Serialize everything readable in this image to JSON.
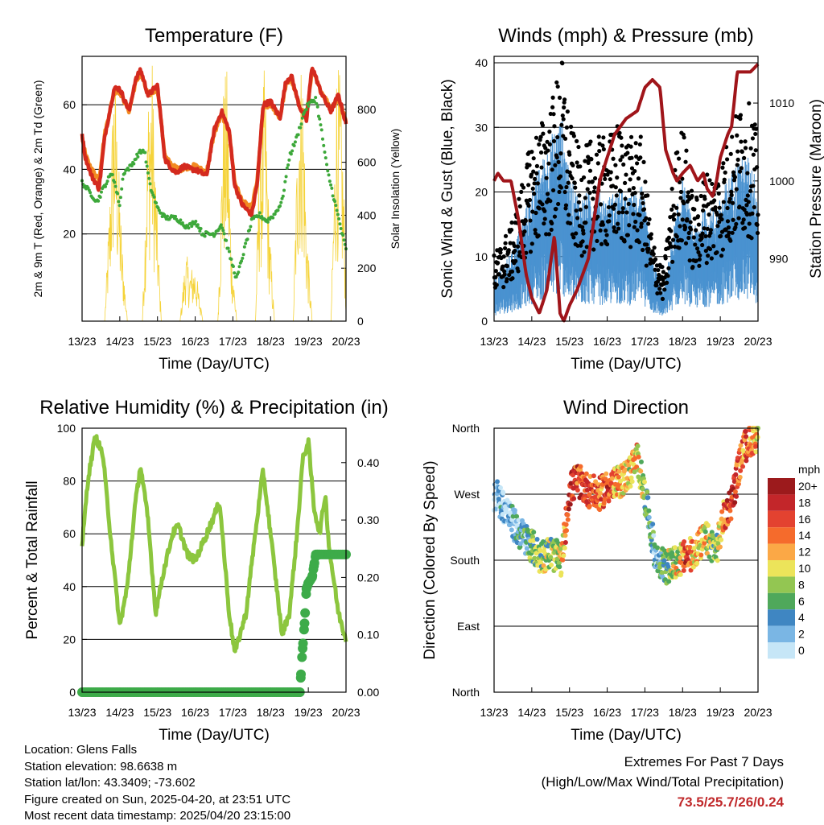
{
  "chart_data": [
    {
      "type": "line",
      "title": "Temperature (F)",
      "xlabel": "Time (Day/UTC)",
      "ylabel": "2m & 9m T (Red, Orange) & 2m Td (Green)",
      "y2label": "Solar Insolation (Yellow)",
      "x_ticks": [
        "13/23",
        "14/23",
        "15/23",
        "16/23",
        "17/23",
        "18/23",
        "19/23",
        "20/23"
      ],
      "x_range": [
        0,
        7
      ],
      "ylim": [
        -7,
        75
      ],
      "y_ticks": [
        20,
        40,
        60
      ],
      "y2lim": [
        0,
        1000
      ],
      "y2_ticks": [
        0,
        200,
        400,
        600,
        800
      ],
      "colors": {
        "t2m": "#d42a1e",
        "t9m": "#f28a22",
        "td2m": "#3da83a",
        "solar": "#f5d33a"
      },
      "series": [
        {
          "name": "2m T",
          "x": [
            0,
            0.08,
            0.25,
            0.45,
            0.6,
            0.85,
            1.0,
            1.25,
            1.4,
            1.55,
            1.75,
            2.0,
            2.2,
            2.4,
            2.5,
            2.7,
            2.9,
            3.0,
            3.3,
            3.5,
            3.7,
            3.9,
            4.05,
            4.25,
            4.5,
            4.65,
            4.8,
            5.0,
            5.25,
            5.4,
            5.55,
            5.75,
            5.95,
            6.1,
            6.3,
            6.5,
            6.6,
            6.8,
            7.0
          ],
          "values": [
            51,
            44,
            38,
            34,
            50,
            65,
            65,
            58,
            67,
            71,
            63,
            66,
            43,
            40,
            39,
            41,
            40,
            40,
            38,
            52,
            58,
            52,
            35,
            29,
            26,
            36,
            60,
            61,
            56,
            67,
            69,
            60,
            55,
            72,
            65,
            60,
            58,
            63,
            54
          ]
        },
        {
          "name": "9m T",
          "x": [
            0,
            0.1,
            0.25,
            0.45,
            0.6,
            0.85,
            1.0,
            1.25,
            1.4,
            1.55,
            1.75,
            2.0,
            2.2,
            2.4,
            2.6,
            2.9,
            3.0,
            3.3,
            3.5,
            3.7,
            3.9,
            4.05,
            4.25,
            4.5,
            4.65,
            4.8,
            5.0,
            5.25,
            5.4,
            5.55,
            5.75,
            5.95,
            6.1,
            6.3,
            6.5,
            6.6,
            6.8,
            7.0
          ],
          "values": [
            50,
            44,
            40,
            37,
            51,
            64,
            64,
            58,
            66,
            70,
            63,
            65,
            44,
            41,
            40,
            41,
            41,
            39,
            51,
            57,
            52,
            36,
            30,
            28,
            37,
            59,
            60,
            56,
            66,
            68,
            60,
            56,
            71,
            65,
            61,
            59,
            62,
            55
          ]
        },
        {
          "name": "2m Td",
          "x": [
            0,
            0.2,
            0.4,
            0.6,
            0.8,
            1.0,
            1.1,
            1.3,
            1.5,
            1.65,
            1.8,
            2.0,
            2.2,
            2.5,
            2.8,
            3.0,
            3.2,
            3.5,
            3.7,
            3.9,
            4.1,
            4.3,
            4.5,
            4.7,
            4.9,
            5.1,
            5.3,
            5.5,
            5.7,
            5.9,
            6.0,
            6.2,
            6.35,
            6.5,
            6.8,
            7.0
          ],
          "values": [
            36,
            33,
            30,
            35,
            39,
            29,
            39,
            41,
            45,
            46,
            35,
            28,
            25,
            25,
            22,
            24,
            20,
            20,
            23,
            14,
            6,
            15,
            24,
            26,
            24,
            26,
            30,
            44,
            50,
            58,
            60,
            62,
            52,
            40,
            25,
            15
          ]
        },
        {
          "name": "Solar",
          "x": [
            0,
            0.6,
            0.75,
            0.85,
            0.95,
            1.05,
            1.2,
            1.6,
            1.75,
            1.85,
            1.95,
            2.1,
            2.2,
            2.6,
            2.75,
            2.85,
            3.0,
            3.2,
            3.6,
            3.75,
            3.85,
            3.95,
            4.1,
            4.2,
            4.6,
            4.7,
            4.85,
            4.95,
            5.1,
            5.2,
            5.6,
            5.75,
            5.85,
            5.95,
            6.1,
            6.2,
            6.6,
            6.75,
            6.85,
            6.95,
            7.0
          ],
          "values": [
            0,
            0,
            500,
            940,
            620,
            300,
            0,
            0,
            800,
            950,
            540,
            0,
            0,
            0,
            250,
            180,
            200,
            0,
            0,
            820,
            880,
            300,
            0,
            0,
            0,
            650,
            900,
            400,
            0,
            0,
            0,
            900,
            920,
            350,
            0,
            0,
            0,
            900,
            850,
            450,
            100
          ]
        }
      ]
    },
    {
      "type": "scatter",
      "title": "Winds (mph) & Pressure (mb)",
      "xlabel": "Time (Day/UTC)",
      "ylabel": "Sonic Wind & Gust (Blue, Black)",
      "y2label": "Station Pressure (Maroon)",
      "x_ticks": [
        "13/23",
        "14/23",
        "15/23",
        "16/23",
        "17/23",
        "18/23",
        "19/23",
        "20/23"
      ],
      "x_range": [
        0,
        7
      ],
      "ylim": [
        0,
        41
      ],
      "y_ticks": [
        0,
        10,
        20,
        30,
        40
      ],
      "y2lim": [
        982,
        1016
      ],
      "y2_ticks": [
        990,
        1000,
        1010
      ],
      "colors": {
        "wind": "#4a92d0",
        "gust": "#000000",
        "pressure": "#a0151a"
      },
      "series": [
        {
          "name": "Station Pressure",
          "x": [
            0,
            0.1,
            0.25,
            0.45,
            0.65,
            0.85,
            1.0,
            1.2,
            1.4,
            1.6,
            1.75,
            1.85,
            2.0,
            2.2,
            2.5,
            2.8,
            3.0,
            3.2,
            3.5,
            3.8,
            4.0,
            4.2,
            4.4,
            4.55,
            4.75,
            4.85,
            5.0,
            5.2,
            5.4,
            5.55,
            5.65,
            5.8,
            5.9,
            6.0,
            6.2,
            6.3,
            6.45,
            6.6,
            6.8,
            7.0
          ],
          "values": [
            1000,
            1001,
            1000,
            1000,
            995,
            988,
            985,
            983,
            986,
            993,
            983,
            982,
            984,
            986,
            990,
            1000,
            1003,
            1006,
            1008,
            1009,
            1012,
            1013,
            1012,
            1004,
            1001,
            1000,
            1001,
            1002,
            1000,
            1001,
            999,
            998,
            1000,
            1003,
            1006,
            1007,
            1014,
            1014,
            1014,
            1015
          ]
        },
        {
          "name": "Wind (mean)",
          "x": [
            0,
            0.5,
            1.0,
            1.5,
            1.8,
            2.0,
            2.3,
            2.6,
            3.0,
            3.3,
            3.6,
            3.9,
            4.2,
            4.5,
            4.8,
            5.0,
            5.3,
            5.6,
            5.9,
            6.2,
            6.5,
            6.8,
            7.0
          ],
          "values": [
            4,
            7,
            13,
            18,
            20,
            14,
            12,
            13,
            12,
            13,
            12,
            14,
            6,
            3,
            10,
            14,
            9,
            11,
            11,
            14,
            16,
            16,
            13
          ]
        },
        {
          "name": "Gust (mean)",
          "x": [
            0,
            0.5,
            1.0,
            1.5,
            1.8,
            2.0,
            2.3,
            2.6,
            3.0,
            3.3,
            3.6,
            3.9,
            4.2,
            4.5,
            4.8,
            5.0,
            5.3,
            5.6,
            5.9,
            6.2,
            6.5,
            6.8,
            7.0
          ],
          "values": [
            8,
            12,
            22,
            26,
            32,
            24,
            20,
            22,
            22,
            24,
            22,
            22,
            10,
            6,
            20,
            24,
            14,
            18,
            18,
            22,
            26,
            26,
            22
          ]
        }
      ]
    },
    {
      "type": "line",
      "title": "Relative Humidity (%) & Precipitation (in)",
      "xlabel": "Time (Day/UTC)",
      "ylabel": "Percent & Total Rainfall",
      "x_ticks": [
        "13/23",
        "14/23",
        "15/23",
        "16/23",
        "17/23",
        "18/23",
        "19/23",
        "20/23"
      ],
      "x_range": [
        0,
        7
      ],
      "ylim": [
        0,
        100
      ],
      "y_ticks": [
        0,
        20,
        40,
        60,
        80,
        100
      ],
      "y2lim": [
        0,
        0.46
      ],
      "y2_ticks": [
        "0.00",
        "0.10",
        "0.20",
        "0.30",
        "0.40"
      ],
      "colors": {
        "rh": "#8cc63e",
        "precip": "#3dab49"
      },
      "series": [
        {
          "name": "Relative Humidity",
          "x": [
            0,
            0.15,
            0.35,
            0.55,
            0.75,
            1.0,
            1.2,
            1.4,
            1.55,
            1.75,
            1.95,
            2.15,
            2.4,
            2.55,
            2.8,
            3.0,
            3.25,
            3.45,
            3.65,
            3.9,
            4.05,
            4.35,
            4.55,
            4.8,
            5.0,
            5.3,
            5.5,
            5.7,
            5.85,
            6.0,
            6.15,
            6.3,
            6.45,
            6.55,
            6.8,
            7.0
          ],
          "values": [
            55,
            80,
            97,
            90,
            60,
            25,
            40,
            70,
            86,
            65,
            30,
            45,
            60,
            63,
            52,
            50,
            58,
            65,
            72,
            30,
            15,
            30,
            55,
            84,
            60,
            22,
            30,
            60,
            88,
            95,
            70,
            60,
            75,
            55,
            30,
            20
          ]
        },
        {
          "name": "Total Precipitation",
          "x": [
            0,
            5.7,
            5.78,
            5.82,
            5.9,
            5.95,
            6.0,
            6.1,
            6.2,
            6.3,
            6.5,
            7.0
          ],
          "values": [
            0,
            0,
            0,
            0.05,
            0.12,
            0.18,
            0.19,
            0.2,
            0.24,
            0.24,
            0.24,
            0.24
          ]
        }
      ]
    },
    {
      "type": "scatter",
      "title": "Wind Direction",
      "xlabel": "Time (Day/UTC)",
      "ylabel": "Direction (Colored By Speed)",
      "x_ticks": [
        "13/23",
        "14/23",
        "15/23",
        "16/23",
        "17/23",
        "18/23",
        "19/23",
        "20/23"
      ],
      "x_range": [
        0,
        7
      ],
      "y_categories": [
        "North",
        "East",
        "South",
        "West",
        "North"
      ],
      "ylim": [
        0,
        360
      ],
      "legend": {
        "title": "mph",
        "labels": [
          "20+",
          "18",
          "16",
          "14",
          "12",
          "10",
          "8",
          "6",
          "4",
          "2",
          "0"
        ],
        "colors": [
          "#9c1a1c",
          "#c3262a",
          "#e34230",
          "#f56b2c",
          "#fba846",
          "#ece45a",
          "#93c652",
          "#4fa85b",
          "#3f86c2",
          "#7ab6e4",
          "#c6e6f7"
        ]
      },
      "series": [
        {
          "name": "Direction",
          "x": [
            0.05,
            0.3,
            0.5,
            0.8,
            1.0,
            1.2,
            1.5,
            1.8,
            2.0,
            2.2,
            2.5,
            2.8,
            3.0,
            3.3,
            3.6,
            3.8,
            4.1,
            4.3,
            4.6,
            4.9,
            5.1,
            5.3,
            5.6,
            5.9,
            6.1,
            6.3,
            6.6,
            6.8,
            6.95
          ],
          "speeds": [
            2,
            1,
            3,
            4,
            6,
            8,
            8,
            10,
            18,
            16,
            16,
            14,
            16,
            12,
            10,
            12,
            4,
            3,
            8,
            10,
            16,
            12,
            10,
            6,
            14,
            18,
            14,
            14,
            12
          ],
          "values": [
            270,
            250,
            230,
            210,
            200,
            185,
            190,
            180,
            275,
            290,
            275,
            270,
            280,
            285,
            300,
            320,
            240,
            180,
            170,
            180,
            185,
            190,
            210,
            195,
            240,
            260,
            330,
            345,
            350
          ]
        }
      ]
    }
  ],
  "footer": {
    "location": "Location: Glens Falls",
    "elevation": "Station elevation: 98.6638 m",
    "latlon": "Station lat/lon: 43.3409; -73.602",
    "created": "Figure created on Sun, 2025-04-20, at 23:51 UTC",
    "recent": "Most recent data timestamp: 2025/04/20 23:15:00"
  },
  "extremes": {
    "heading": "Extremes For Past 7 Days",
    "subheading": "(High/Low/Max Wind/Total Precipitation)",
    "values": "73.5/25.7/26/0.24"
  }
}
